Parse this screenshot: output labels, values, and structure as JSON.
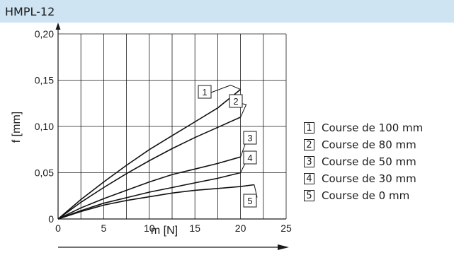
{
  "header": {
    "title": "HMPL-12"
  },
  "chart_data": {
    "type": "line",
    "xlabel": "m [N]",
    "ylabel": "f [mm]",
    "xlim": [
      0,
      25
    ],
    "ylim": [
      0,
      0.2
    ],
    "xticks": [
      "0",
      "5",
      "10",
      "15",
      "20",
      "25"
    ],
    "yticks": [
      "0",
      "0,05",
      "0,10",
      "0,15",
      "0,20"
    ],
    "grid": true,
    "legend_position": "right",
    "series": [
      {
        "name": "Course de 100 mm",
        "key": "1",
        "x": [
          0,
          2.5,
          5,
          7.5,
          10,
          12.5,
          15,
          17.5,
          20
        ],
        "y": [
          0,
          0.021,
          0.04,
          0.058,
          0.075,
          0.09,
          0.105,
          0.12,
          0.14
        ]
      },
      {
        "name": "Course de 80 mm",
        "key": "2",
        "x": [
          0,
          2.5,
          5,
          7.5,
          10,
          12.5,
          15,
          17.5,
          20
        ],
        "y": [
          0,
          0.018,
          0.034,
          0.049,
          0.063,
          0.076,
          0.088,
          0.099,
          0.11
        ]
      },
      {
        "name": "Course de 50 mm",
        "key": "3",
        "x": [
          0,
          2.5,
          5,
          7.5,
          10,
          12.5,
          15,
          17.5,
          20
        ],
        "y": [
          0,
          0.012,
          0.022,
          0.031,
          0.04,
          0.048,
          0.054,
          0.06,
          0.067
        ]
      },
      {
        "name": "Course de 30 mm",
        "key": "4",
        "x": [
          0,
          2.5,
          5,
          7.5,
          10,
          12.5,
          15,
          17.5,
          20
        ],
        "y": [
          0,
          0.009,
          0.017,
          0.023,
          0.029,
          0.034,
          0.039,
          0.044,
          0.05
        ]
      },
      {
        "name": "Course de 0 mm",
        "key": "5",
        "x": [
          0,
          2.5,
          5,
          7.5,
          10,
          12.5,
          15,
          17.5,
          20,
          21.5
        ],
        "y": [
          0,
          0.008,
          0.015,
          0.02,
          0.024,
          0.028,
          0.031,
          0.033,
          0.035,
          0.037
        ]
      }
    ]
  }
}
